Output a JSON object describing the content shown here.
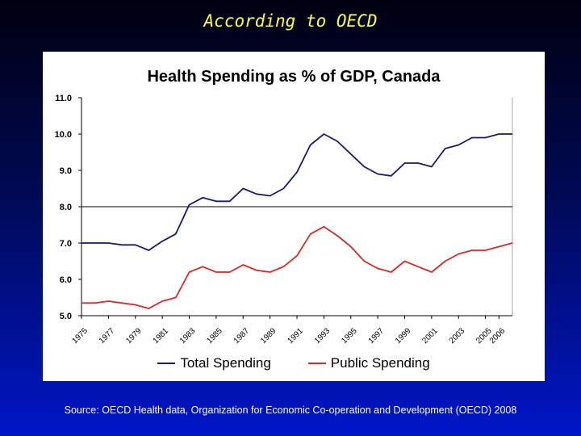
{
  "slide": {
    "title": "According to OECD",
    "source": "Source: OECD Health data, Organization for Economic Co-operation and Development (OECD) 2008"
  },
  "colors": {
    "total": "#1a1a6e",
    "public": "#d42a2a",
    "title": "#ffff33"
  },
  "chart_data": {
    "type": "line",
    "title": "Health Spending as % of GDP, Canada",
    "xlabel": "",
    "ylabel": "",
    "ylim": [
      5.0,
      11.0
    ],
    "xlim": [
      1975,
      2007
    ],
    "yticks": [
      "5.0",
      "6.0",
      "7.0",
      "8.0",
      "9.0",
      "10.0",
      "11.0"
    ],
    "xticks": [
      "1975",
      "1977",
      "1979",
      "1981",
      "1983",
      "1985",
      "1987",
      "1989",
      "1991",
      "1993",
      "1995",
      "1997",
      "1999",
      "2001",
      "2003",
      "2005",
      "2006"
    ],
    "reference_line": 8.0,
    "legend_position": "bottom",
    "x": [
      1975,
      1976,
      1977,
      1978,
      1979,
      1980,
      1981,
      1982,
      1983,
      1984,
      1985,
      1986,
      1987,
      1988,
      1989,
      1990,
      1991,
      1992,
      1993,
      1994,
      1995,
      1996,
      1997,
      1998,
      1999,
      2000,
      2001,
      2002,
      2003,
      2004,
      2005,
      2006,
      2007
    ],
    "series": [
      {
        "name": "Total Spending",
        "values": [
          7.0,
          7.0,
          7.0,
          6.95,
          6.95,
          6.8,
          7.05,
          7.25,
          8.05,
          8.25,
          8.15,
          8.15,
          8.5,
          8.35,
          8.3,
          8.5,
          8.95,
          9.7,
          10.0,
          9.8,
          9.45,
          9.1,
          8.9,
          8.85,
          9.2,
          9.2,
          9.1,
          9.6,
          9.7,
          9.9,
          9.9,
          10.0,
          10.0
        ]
      },
      {
        "name": "Public Spending",
        "values": [
          5.35,
          5.35,
          5.4,
          5.35,
          5.3,
          5.2,
          5.4,
          5.5,
          6.2,
          6.35,
          6.2,
          6.2,
          6.4,
          6.25,
          6.2,
          6.35,
          6.65,
          7.25,
          7.45,
          7.2,
          6.9,
          6.5,
          6.3,
          6.2,
          6.5,
          6.35,
          6.2,
          6.5,
          6.7,
          6.8,
          6.8,
          6.9,
          7.0
        ]
      }
    ]
  }
}
